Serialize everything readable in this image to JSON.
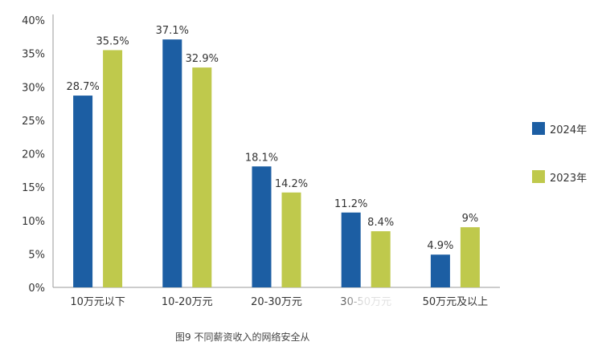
{
  "chart_data": {
    "type": "bar",
    "categories": [
      "10万元以下",
      "10-20万元",
      "20-30万元",
      "30-50万元",
      "50万元及以上"
    ],
    "series": [
      {
        "name": "2024年",
        "color": "#1c5ea3",
        "values": [
          28.7,
          37.1,
          18.1,
          11.2,
          4.9
        ],
        "labels": [
          "28.7%",
          "37.1%",
          "18.1%",
          "11.2%",
          "4.9%"
        ]
      },
      {
        "name": "2023年",
        "color": "#bfc94c",
        "values": [
          35.5,
          32.9,
          14.2,
          8.4,
          9
        ],
        "labels": [
          "35.5%",
          "32.9%",
          "14.2%",
          "8.4%",
          "9%"
        ]
      }
    ],
    "ylim": [
      0,
      40
    ],
    "yticks": [
      "0%",
      "5%",
      "10%",
      "15%",
      "20%",
      "25%",
      "30%",
      "35%",
      "40%"
    ],
    "legend_position": "right",
    "grid": false
  },
  "caption": "图9 不同薪资收入的网络安全从"
}
